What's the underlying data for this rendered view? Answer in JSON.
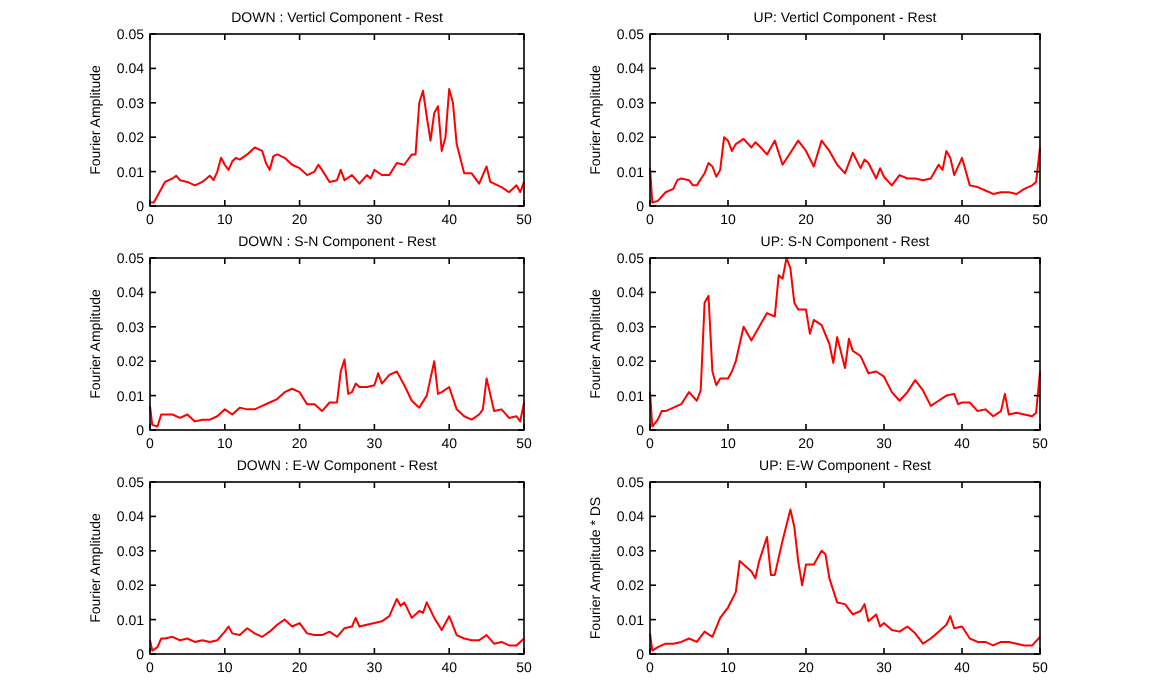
{
  "chart_data": [
    {
      "type": "line",
      "title": "DOWN : Verticl Component - Rest",
      "ylabel": "Fourier Amplitude",
      "xlim": [
        0,
        50
      ],
      "xticks": [
        0,
        10,
        20,
        30,
        40,
        50
      ],
      "ylim": [
        0,
        0.05
      ],
      "yticks": [
        0,
        0.01,
        0.02,
        0.03,
        0.04,
        0.05
      ],
      "grid": false,
      "series": [
        {
          "color": "#ff0000",
          "x": [
            0,
            0.5,
            1,
            2,
            3,
            3.5,
            4,
            5,
            6,
            7,
            8,
            8.5,
            9,
            9.5,
            10,
            10.5,
            11,
            11.5,
            12,
            13,
            14,
            15,
            15.5,
            16,
            16.5,
            17,
            18,
            19,
            20,
            21,
            22,
            22.5,
            23,
            24,
            25,
            25.5,
            26,
            27,
            28,
            29,
            29.5,
            30,
            31,
            32,
            33,
            34,
            35,
            35.5,
            36,
            36.5,
            37,
            37.5,
            38,
            38.5,
            39,
            39.5,
            40,
            40.5,
            41,
            42,
            43,
            44,
            45,
            45.5,
            46,
            47,
            48,
            49,
            49.5,
            50
          ],
          "values": [
            0.001,
            0.001,
            0.003,
            0.007,
            0.008,
            0.0088,
            0.0075,
            0.007,
            0.006,
            0.007,
            0.0088,
            0.0075,
            0.01,
            0.014,
            0.012,
            0.0105,
            0.013,
            0.014,
            0.0135,
            0.015,
            0.017,
            0.016,
            0.0125,
            0.0105,
            0.0145,
            0.015,
            0.014,
            0.012,
            0.011,
            0.009,
            0.01,
            0.012,
            0.0105,
            0.007,
            0.0075,
            0.0105,
            0.0075,
            0.009,
            0.0065,
            0.009,
            0.008,
            0.0105,
            0.009,
            0.009,
            0.0125,
            0.012,
            0.015,
            0.015,
            0.03,
            0.0335,
            0.026,
            0.019,
            0.027,
            0.029,
            0.016,
            0.02,
            0.034,
            0.03,
            0.018,
            0.0095,
            0.0095,
            0.0065,
            0.0115,
            0.007,
            0.0065,
            0.0055,
            0.004,
            0.006,
            0.004,
            0.007
          ]
        }
      ]
    },
    {
      "type": "line",
      "title": "UP: Verticl Component - Rest",
      "ylabel": "Fourier Amplitude",
      "xlim": [
        0,
        50
      ],
      "xticks": [
        0,
        10,
        20,
        30,
        40,
        50
      ],
      "ylim": [
        0,
        0.05
      ],
      "yticks": [
        0,
        0.01,
        0.02,
        0.03,
        0.04,
        0.05
      ],
      "grid": false,
      "series": [
        {
          "color": "#ff0000",
          "x": [
            0,
            0.3,
            1,
            2,
            3,
            3.5,
            4,
            5,
            5.5,
            6,
            7,
            7.5,
            8,
            8.5,
            9,
            9.5,
            10,
            10.5,
            11,
            12,
            13,
            13.5,
            14,
            15,
            16,
            17,
            18,
            19,
            20,
            21,
            22,
            23,
            24,
            25,
            26,
            27,
            27.5,
            28,
            29,
            29.5,
            30,
            31,
            32,
            33,
            34,
            35,
            36,
            37,
            37.5,
            38,
            38.5,
            39,
            40,
            41,
            42,
            43,
            44,
            45,
            46,
            47,
            48,
            49,
            49.5,
            50
          ],
          "values": [
            0.011,
            0.001,
            0.0015,
            0.004,
            0.005,
            0.0075,
            0.008,
            0.0075,
            0.006,
            0.006,
            0.0095,
            0.0125,
            0.0115,
            0.0085,
            0.0105,
            0.02,
            0.019,
            0.016,
            0.018,
            0.0195,
            0.017,
            0.0185,
            0.0175,
            0.015,
            0.019,
            0.012,
            0.0155,
            0.019,
            0.016,
            0.0115,
            0.019,
            0.016,
            0.012,
            0.0095,
            0.0155,
            0.011,
            0.0135,
            0.0125,
            0.008,
            0.011,
            0.0085,
            0.006,
            0.009,
            0.008,
            0.008,
            0.0075,
            0.008,
            0.012,
            0.0105,
            0.016,
            0.014,
            0.009,
            0.014,
            0.006,
            0.0055,
            0.0045,
            0.0035,
            0.004,
            0.004,
            0.0035,
            0.005,
            0.006,
            0.007,
            0.017
          ]
        }
      ]
    },
    {
      "type": "line",
      "title": "DOWN : S-N Component - Rest",
      "ylabel": "Fourier Amplitude",
      "xlim": [
        0,
        50
      ],
      "xticks": [
        0,
        10,
        20,
        30,
        40,
        50
      ],
      "ylim": [
        0,
        0.05
      ],
      "yticks": [
        0,
        0.01,
        0.02,
        0.03,
        0.04,
        0.05
      ],
      "grid": false,
      "series": [
        {
          "color": "#ff0000",
          "x": [
            0,
            0.3,
            1,
            1.5,
            2,
            3,
            4,
            5,
            6,
            7,
            8,
            9,
            10,
            11,
            12,
            13,
            14,
            15,
            16,
            17,
            18,
            19,
            20,
            21,
            22,
            23,
            24,
            25,
            25.5,
            26,
            26.5,
            27,
            27.5,
            28,
            29,
            30,
            30.5,
            31,
            32,
            33,
            34,
            35,
            36,
            37,
            37.5,
            38,
            38.5,
            39,
            40,
            41,
            42,
            43,
            44,
            44.5,
            45,
            46,
            47,
            48,
            49,
            49.5,
            50
          ],
          "values": [
            0.007,
            0.0015,
            0.001,
            0.0045,
            0.0045,
            0.0045,
            0.0035,
            0.0045,
            0.0025,
            0.003,
            0.003,
            0.004,
            0.006,
            0.0045,
            0.0065,
            0.006,
            0.006,
            0.007,
            0.008,
            0.009,
            0.011,
            0.012,
            0.011,
            0.0075,
            0.0075,
            0.0055,
            0.008,
            0.008,
            0.017,
            0.0205,
            0.0105,
            0.011,
            0.0135,
            0.0125,
            0.0125,
            0.013,
            0.0165,
            0.0135,
            0.016,
            0.017,
            0.013,
            0.0085,
            0.0065,
            0.01,
            0.015,
            0.02,
            0.0105,
            0.011,
            0.0125,
            0.006,
            0.004,
            0.003,
            0.0045,
            0.006,
            0.015,
            0.0055,
            0.006,
            0.0035,
            0.004,
            0.0025,
            0.008
          ]
        }
      ]
    },
    {
      "type": "line",
      "title": "UP: S-N Component - Rest",
      "ylabel": "Fourier Amplitude",
      "xlim": [
        0,
        50
      ],
      "xticks": [
        0,
        10,
        20,
        30,
        40,
        50
      ],
      "ylim": [
        0,
        0.05
      ],
      "yticks": [
        0,
        0.01,
        0.02,
        0.03,
        0.04,
        0.05
      ],
      "grid": false,
      "series": [
        {
          "color": "#ff0000",
          "x": [
            0,
            0.3,
            1,
            1.5,
            2,
            3,
            4,
            5,
            6,
            6.5,
            7,
            7.5,
            8,
            8.5,
            9,
            10,
            10.5,
            11,
            12,
            13,
            14,
            15,
            16,
            16.5,
            17,
            17.5,
            18,
            18.5,
            19,
            20,
            20.5,
            21,
            22,
            23,
            23.5,
            24,
            25,
            25.5,
            26,
            27,
            28,
            29,
            30,
            31,
            32,
            33,
            34,
            35,
            36,
            37,
            38,
            39,
            39.5,
            40,
            41,
            42,
            43,
            44,
            45,
            45.5,
            46,
            47,
            48,
            49,
            49.5,
            50
          ],
          "values": [
            0.011,
            0.001,
            0.003,
            0.0055,
            0.0055,
            0.0065,
            0.0075,
            0.011,
            0.0085,
            0.0115,
            0.037,
            0.039,
            0.017,
            0.013,
            0.015,
            0.015,
            0.017,
            0.02,
            0.03,
            0.026,
            0.03,
            0.034,
            0.033,
            0.045,
            0.044,
            0.05,
            0.047,
            0.037,
            0.035,
            0.035,
            0.028,
            0.032,
            0.0305,
            0.025,
            0.0195,
            0.027,
            0.018,
            0.0265,
            0.023,
            0.0215,
            0.0165,
            0.017,
            0.0155,
            0.011,
            0.0085,
            0.011,
            0.0145,
            0.0115,
            0.007,
            0.0085,
            0.01,
            0.0105,
            0.0075,
            0.008,
            0.008,
            0.0055,
            0.006,
            0.004,
            0.0055,
            0.0105,
            0.0045,
            0.005,
            0.0045,
            0.004,
            0.005,
            0.017
          ]
        }
      ]
    },
    {
      "type": "line",
      "title": "DOWN : E-W Component - Rest",
      "ylabel": "Fourier Amplitude",
      "xlim": [
        0,
        50
      ],
      "xticks": [
        0,
        10,
        20,
        30,
        40,
        50
      ],
      "ylim": [
        0,
        0.05
      ],
      "yticks": [
        0,
        0.01,
        0.02,
        0.03,
        0.04,
        0.05
      ],
      "grid": false,
      "series": [
        {
          "color": "#ff0000",
          "x": [
            0,
            0.3,
            1,
            1.5,
            2,
            3,
            4,
            5,
            6,
            7,
            8,
            9,
            10,
            10.5,
            11,
            12,
            13,
            14,
            15,
            16,
            17,
            18,
            19,
            20,
            21,
            22,
            23,
            24,
            25,
            26,
            27,
            27.5,
            28,
            29,
            30,
            31,
            32,
            33,
            33.5,
            34,
            35,
            36,
            36.5,
            37,
            38,
            39,
            40,
            41,
            42,
            43,
            44,
            45,
            46,
            47,
            48,
            49,
            50
          ],
          "values": [
            0.004,
            0.001,
            0.002,
            0.0045,
            0.0045,
            0.005,
            0.004,
            0.0045,
            0.0035,
            0.004,
            0.0035,
            0.004,
            0.0065,
            0.008,
            0.006,
            0.0055,
            0.0075,
            0.006,
            0.005,
            0.0065,
            0.0085,
            0.01,
            0.008,
            0.009,
            0.006,
            0.0055,
            0.0055,
            0.0065,
            0.005,
            0.0075,
            0.008,
            0.0105,
            0.008,
            0.0085,
            0.009,
            0.0095,
            0.011,
            0.016,
            0.014,
            0.015,
            0.0105,
            0.0125,
            0.012,
            0.015,
            0.0105,
            0.007,
            0.011,
            0.0055,
            0.0045,
            0.004,
            0.004,
            0.0055,
            0.003,
            0.0035,
            0.0025,
            0.0025,
            0.0045
          ]
        }
      ]
    },
    {
      "type": "line",
      "title": "UP: E-W Component - Rest",
      "ylabel": "Fourier Amplitude * DS",
      "xlim": [
        0,
        50
      ],
      "xticks": [
        0,
        10,
        20,
        30,
        40,
        50
      ],
      "ylim": [
        0,
        0.05
      ],
      "yticks": [
        0,
        0.01,
        0.02,
        0.03,
        0.04,
        0.05
      ],
      "grid": false,
      "series": [
        {
          "color": "#ff0000",
          "x": [
            0,
            0.3,
            1,
            2,
            3,
            4,
            5,
            6,
            7,
            8,
            9,
            10,
            11,
            11.5,
            12,
            13,
            13.5,
            14,
            15,
            15.5,
            16,
            17,
            18,
            18.5,
            19,
            19.5,
            20,
            21,
            22,
            22.5,
            23,
            24,
            25,
            26,
            27,
            27.5,
            28,
            29,
            29.5,
            30,
            31,
            32,
            33,
            34,
            35,
            36,
            37,
            38,
            38.5,
            39,
            40,
            41,
            42,
            43,
            44,
            45,
            46,
            47,
            48,
            49,
            50
          ],
          "values": [
            0.006,
            0.001,
            0.002,
            0.003,
            0.003,
            0.0035,
            0.0045,
            0.0035,
            0.0065,
            0.005,
            0.0105,
            0.0135,
            0.018,
            0.027,
            0.026,
            0.024,
            0.022,
            0.027,
            0.034,
            0.023,
            0.023,
            0.033,
            0.042,
            0.037,
            0.027,
            0.02,
            0.026,
            0.026,
            0.03,
            0.029,
            0.022,
            0.015,
            0.0145,
            0.0115,
            0.0125,
            0.0145,
            0.0095,
            0.0115,
            0.008,
            0.009,
            0.007,
            0.0065,
            0.008,
            0.006,
            0.003,
            0.0045,
            0.0065,
            0.0085,
            0.011,
            0.0075,
            0.008,
            0.0045,
            0.0035,
            0.0035,
            0.0025,
            0.0035,
            0.0035,
            0.003,
            0.0025,
            0.0025,
            0.005
          ]
        }
      ]
    }
  ]
}
